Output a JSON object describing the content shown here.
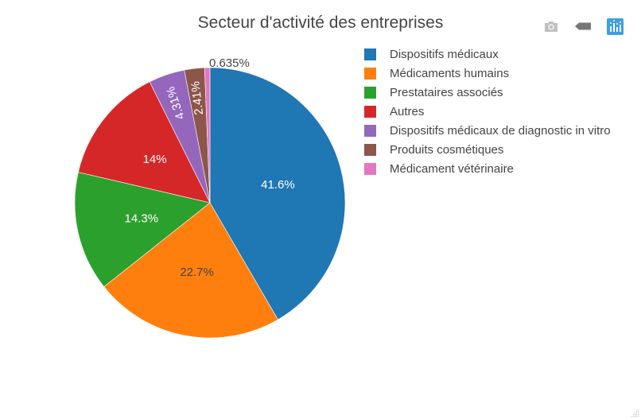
{
  "modebar": {
    "buttons": [
      {
        "name": "camera-icon",
        "color": "#c0c0c0"
      },
      {
        "name": "tag-icon",
        "color": "#777777"
      },
      {
        "name": "plotly-logo-icon",
        "color": "#3f9fdf"
      }
    ]
  },
  "chart_data": {
    "type": "pie",
    "title": "Secteur d'activité des entreprises",
    "legend_position": "top-right",
    "slices": [
      {
        "label": "Dispositifs médicaux",
        "value": 41.6,
        "text": "41.6%",
        "color": "#1f77b4",
        "text_color": "#ffffff"
      },
      {
        "label": "Médicaments humains",
        "value": 22.7,
        "text": "22.7%",
        "color": "#ff7f0e",
        "text_color": "#444444"
      },
      {
        "label": "Prestataires associés",
        "value": 14.3,
        "text": "14.3%",
        "color": "#2ca02c",
        "text_color": "#ffffff"
      },
      {
        "label": "Autres",
        "value": 14.0,
        "text": "14%",
        "color": "#d62728",
        "text_color": "#ffffff"
      },
      {
        "label": "Dispositifs médicaux de diagnostic in vitro",
        "value": 4.31,
        "text": "4.31%",
        "color": "#9467bd",
        "text_color": "#ffffff"
      },
      {
        "label": "Produits cosmétiques",
        "value": 2.41,
        "text": "2.41%",
        "color": "#8c564b",
        "text_color": "#ffffff"
      },
      {
        "label": "Médicament vétérinaire",
        "value": 0.635,
        "text": "0.635%",
        "color": "#e377c2",
        "text_color": "#444444"
      }
    ]
  }
}
